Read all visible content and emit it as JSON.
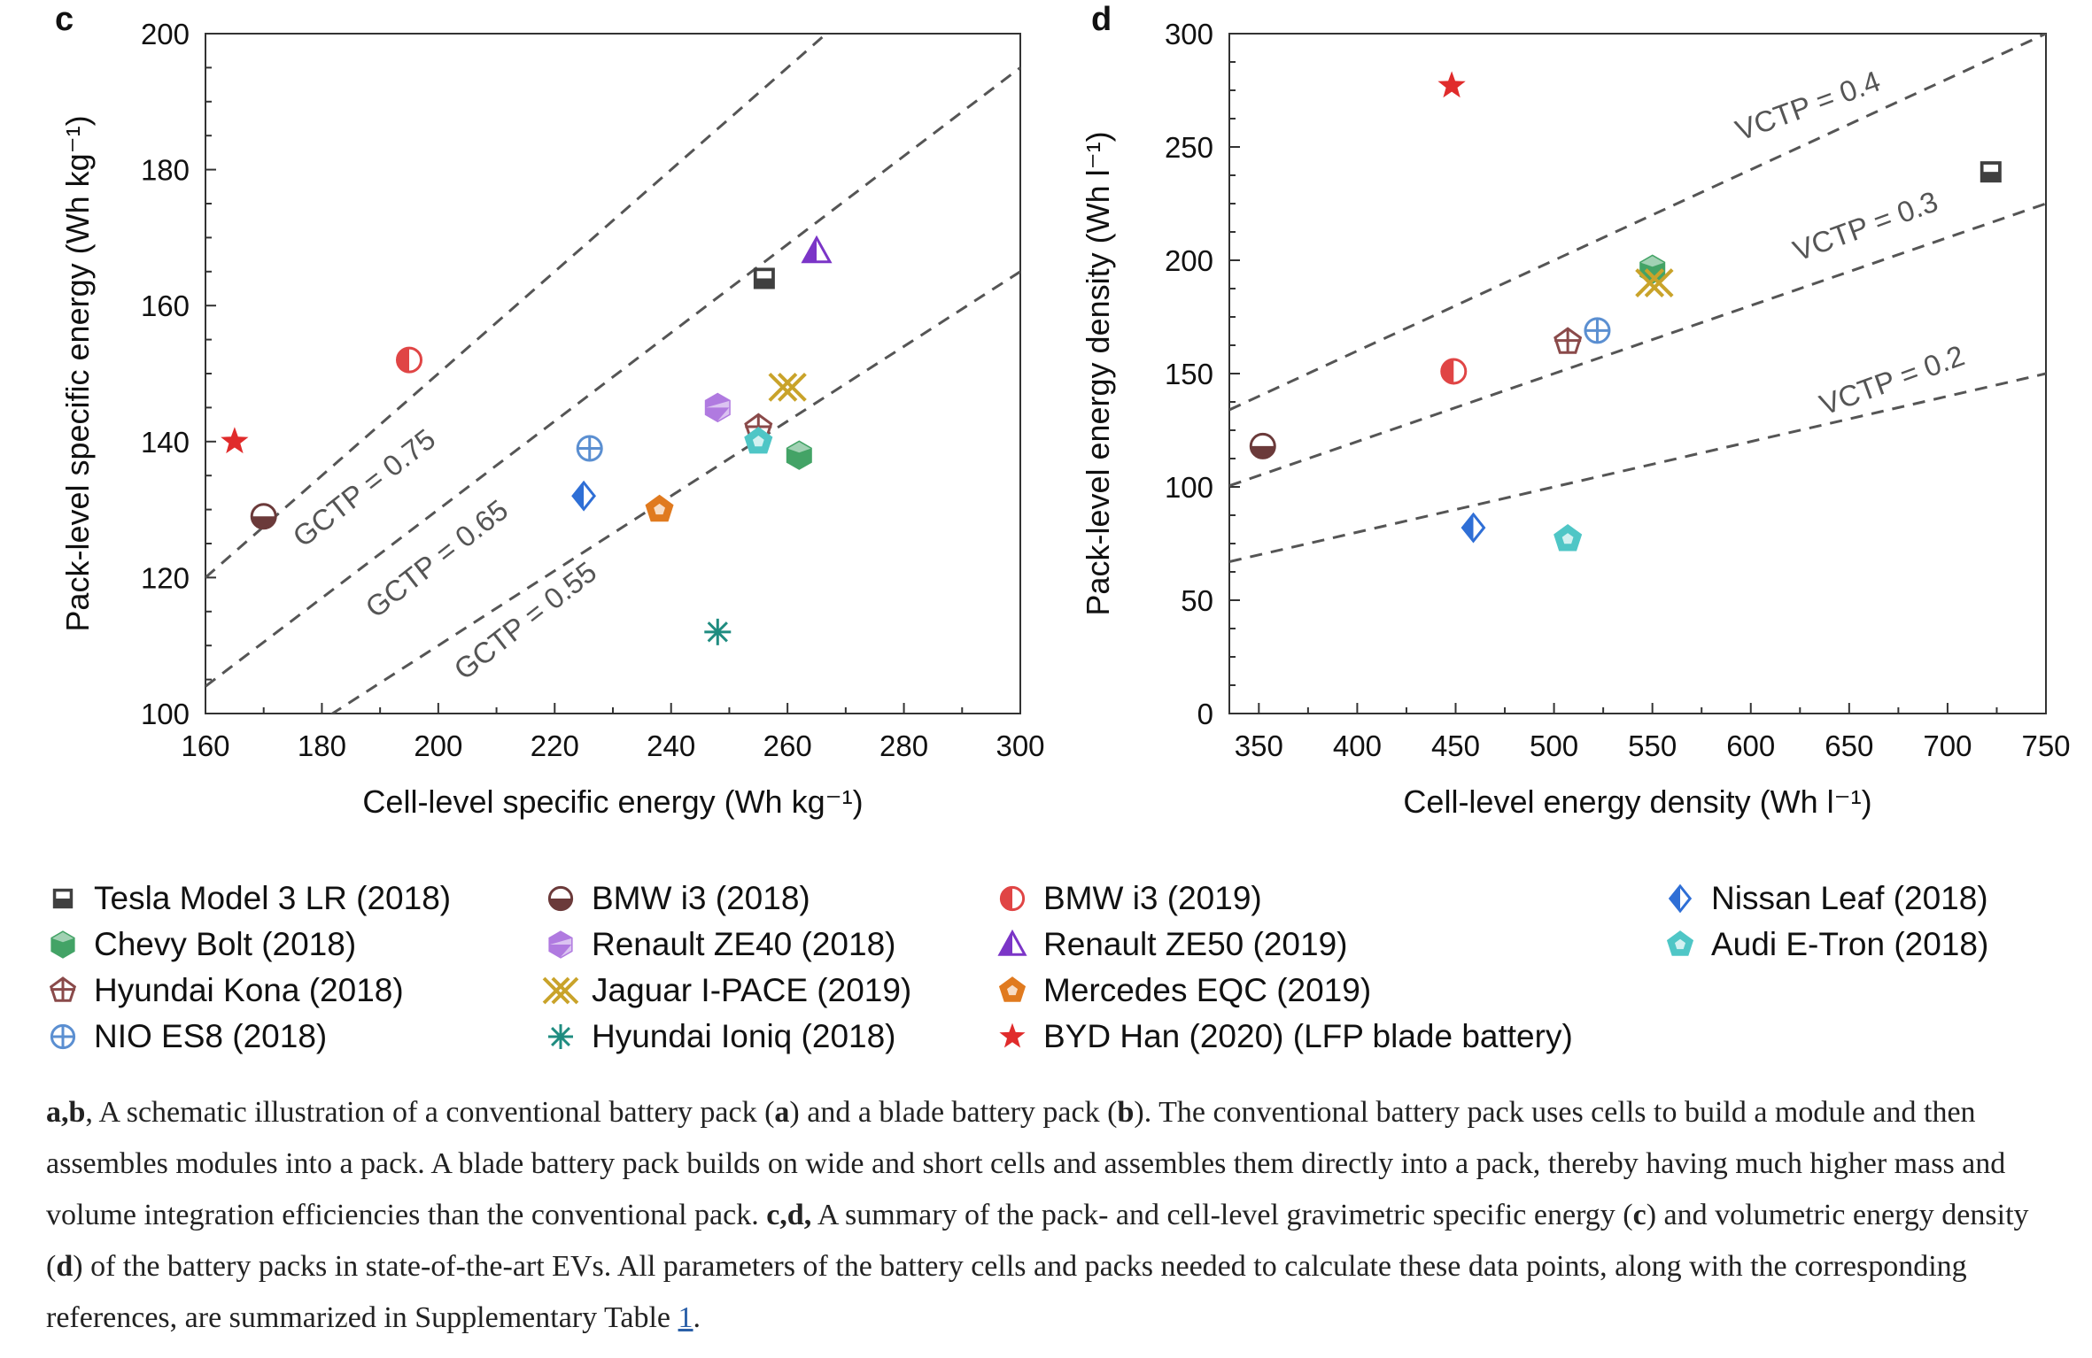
{
  "colors": {
    "tesla": "#404040",
    "bolt": "#43a366",
    "kona": "#8a4a4a",
    "nio": "#5b8fd1",
    "bmw2018": "#6b3a3a",
    "ze40": "#b07ae0",
    "ipace": "#c9a32a",
    "ioniq": "#1f8c80",
    "bmw2019": "#e04545",
    "ze50": "#7b35c7",
    "eqc": "#e07a1f",
    "byd": "#e02b2b",
    "leaf": "#2f6fd6",
    "etron": "#4fc6c6"
  },
  "chart_data": [
    {
      "panel": "c",
      "type": "scatter",
      "xlabel": "Cell-level specific energy (Wh kg⁻¹)",
      "ylabel": "Pack-level specific energy (Wh kg⁻¹)",
      "xlim": [
        160,
        300
      ],
      "ylim": [
        100,
        200
      ],
      "xticks": [
        "160",
        "180",
        "200",
        "220",
        "240",
        "260",
        "280",
        "300"
      ],
      "yticks": [
        "100",
        "120",
        "140",
        "160",
        "180",
        "200"
      ],
      "reference_lines": [
        {
          "label": "GCTP = 0.75",
          "slope": 0.75
        },
        {
          "label": "GCTP = 0.65",
          "slope": 0.65
        },
        {
          "label": "GCTP = 0.55",
          "slope": 0.55
        }
      ],
      "points": [
        {
          "series": "Tesla Model 3 LR (2018)",
          "x": 256,
          "y": 164
        },
        {
          "series": "Renault ZE50 (2019)",
          "x": 265,
          "y": 168
        },
        {
          "series": "BMW i3 (2019)",
          "x": 195,
          "y": 152
        },
        {
          "series": "BYD Han (2020) (LFP blade battery)",
          "x": 165,
          "y": 140
        },
        {
          "series": "BMW i3 (2018)",
          "x": 170,
          "y": 129
        },
        {
          "series": "NIO ES8 (2018)",
          "x": 226,
          "y": 139
        },
        {
          "series": "Nissan Leaf (2018)",
          "x": 225,
          "y": 132
        },
        {
          "series": "Mercedes EQC (2019)",
          "x": 238,
          "y": 130
        },
        {
          "series": "Renault ZE40 (2018)",
          "x": 248,
          "y": 145
        },
        {
          "series": "Jaguar I-PACE (2019)",
          "x": 260,
          "y": 148
        },
        {
          "series": "Hyundai Kona (2018)",
          "x": 255,
          "y": 142
        },
        {
          "series": "Audi E-Tron (2018)",
          "x": 255,
          "y": 140
        },
        {
          "series": "Chevy Bolt (2018)",
          "x": 262,
          "y": 138
        },
        {
          "series": "Hyundai Ioniq (2018)",
          "x": 248,
          "y": 112
        }
      ]
    },
    {
      "panel": "d",
      "type": "scatter",
      "xlabel": "Cell-level energy density (Wh l⁻¹)",
      "ylabel": "Pack-level energy density (Wh l⁻¹)",
      "xlim": [
        335,
        750
      ],
      "ylim": [
        0,
        300
      ],
      "xticks": [
        "350",
        "400",
        "450",
        "500",
        "550",
        "600",
        "650",
        "700",
        "750"
      ],
      "yticks": [
        "0",
        "50",
        "100",
        "150",
        "200",
        "250",
        "300"
      ],
      "reference_lines": [
        {
          "label": "VCTP = 0.4",
          "slope": 0.4
        },
        {
          "label": "VCTP = 0.3",
          "slope": 0.3
        },
        {
          "label": "VCTP = 0.2",
          "slope": 0.2
        }
      ],
      "points": [
        {
          "series": "BYD Han (2020) (LFP blade battery)",
          "x": 448,
          "y": 277
        },
        {
          "series": "Tesla Model 3 LR (2018)",
          "x": 722,
          "y": 239
        },
        {
          "series": "Chevy Bolt (2018)",
          "x": 550,
          "y": 196
        },
        {
          "series": "Jaguar I-PACE (2019)",
          "x": 551,
          "y": 190
        },
        {
          "series": "NIO ES8 (2018)",
          "x": 522,
          "y": 169
        },
        {
          "series": "Hyundai Kona (2018)",
          "x": 507,
          "y": 164
        },
        {
          "series": "BMW i3 (2019)",
          "x": 449,
          "y": 151
        },
        {
          "series": "BMW i3 (2018)",
          "x": 352,
          "y": 118
        },
        {
          "series": "Nissan Leaf (2018)",
          "x": 459,
          "y": 82
        },
        {
          "series": "Audi E-Tron (2018)",
          "x": 507,
          "y": 77
        }
      ]
    }
  ],
  "legend": [
    {
      "label": "Tesla Model 3 LR (2018)",
      "marker": "square",
      "color": "#404040"
    },
    {
      "label": "Chevy Bolt (2018)",
      "marker": "hexagon",
      "color": "#43a366"
    },
    {
      "label": "Hyundai Kona (2018)",
      "marker": "pentagon-star",
      "color": "#8a4a4a"
    },
    {
      "label": "NIO ES8 (2018)",
      "marker": "circle-plus",
      "color": "#5b8fd1"
    },
    {
      "label": "BMW i3 (2018)",
      "marker": "circle-half-bottom",
      "color": "#6b3a3a"
    },
    {
      "label": "Renault ZE40 (2018)",
      "marker": "hexagon-half",
      "color": "#b07ae0"
    },
    {
      "label": "Jaguar I-PACE (2019)",
      "marker": "double-x",
      "color": "#c9a32a"
    },
    {
      "label": "Hyundai Ioniq (2018)",
      "marker": "asterisk",
      "color": "#1f8c80"
    },
    {
      "label": "BMW i3 (2019)",
      "marker": "circle-half-left",
      "color": "#e04545"
    },
    {
      "label": "Renault ZE50 (2019)",
      "marker": "triangle-half",
      "color": "#7b35c7"
    },
    {
      "label": "Mercedes EQC (2019)",
      "marker": "pentagon-half",
      "color": "#e07a1f"
    },
    {
      "label": "BYD Han (2020) (LFP blade battery)",
      "marker": "star",
      "color": "#e02b2b"
    },
    {
      "label": "Nissan Leaf (2018)",
      "marker": "diamond-half",
      "color": "#2f6fd6"
    },
    {
      "label": "Audi E-Tron (2018)",
      "marker": "pentagon-cyan",
      "color": "#4fc6c6"
    }
  ],
  "caption": {
    "ab": "a,b",
    "t1": ", A schematic illustration of a conventional battery pack (",
    "a": "a",
    "t2": ") and a blade battery pack (",
    "b": "b",
    "t3": "). The conventional battery pack uses cells to build a module and then assembles modules into a pack. A blade battery pack builds on wide and short cells and assembles them directly into a pack, thereby having much higher mass and volume integration efficiencies than the conventional pack. ",
    "cd": "c,d,",
    "t4": " A summary of the pack- and cell-level gravimetric specific energy (",
    "c": "c",
    "t5": ") and volumetric energy density (",
    "d": "d",
    "t6": ") of the battery packs in state-of-the-art EVs. All parameters of the battery cells and packs needed to calculate these data points, along with the corresponding references, are summarized in Supplementary Table ",
    "ref": "1",
    "t7": "."
  }
}
